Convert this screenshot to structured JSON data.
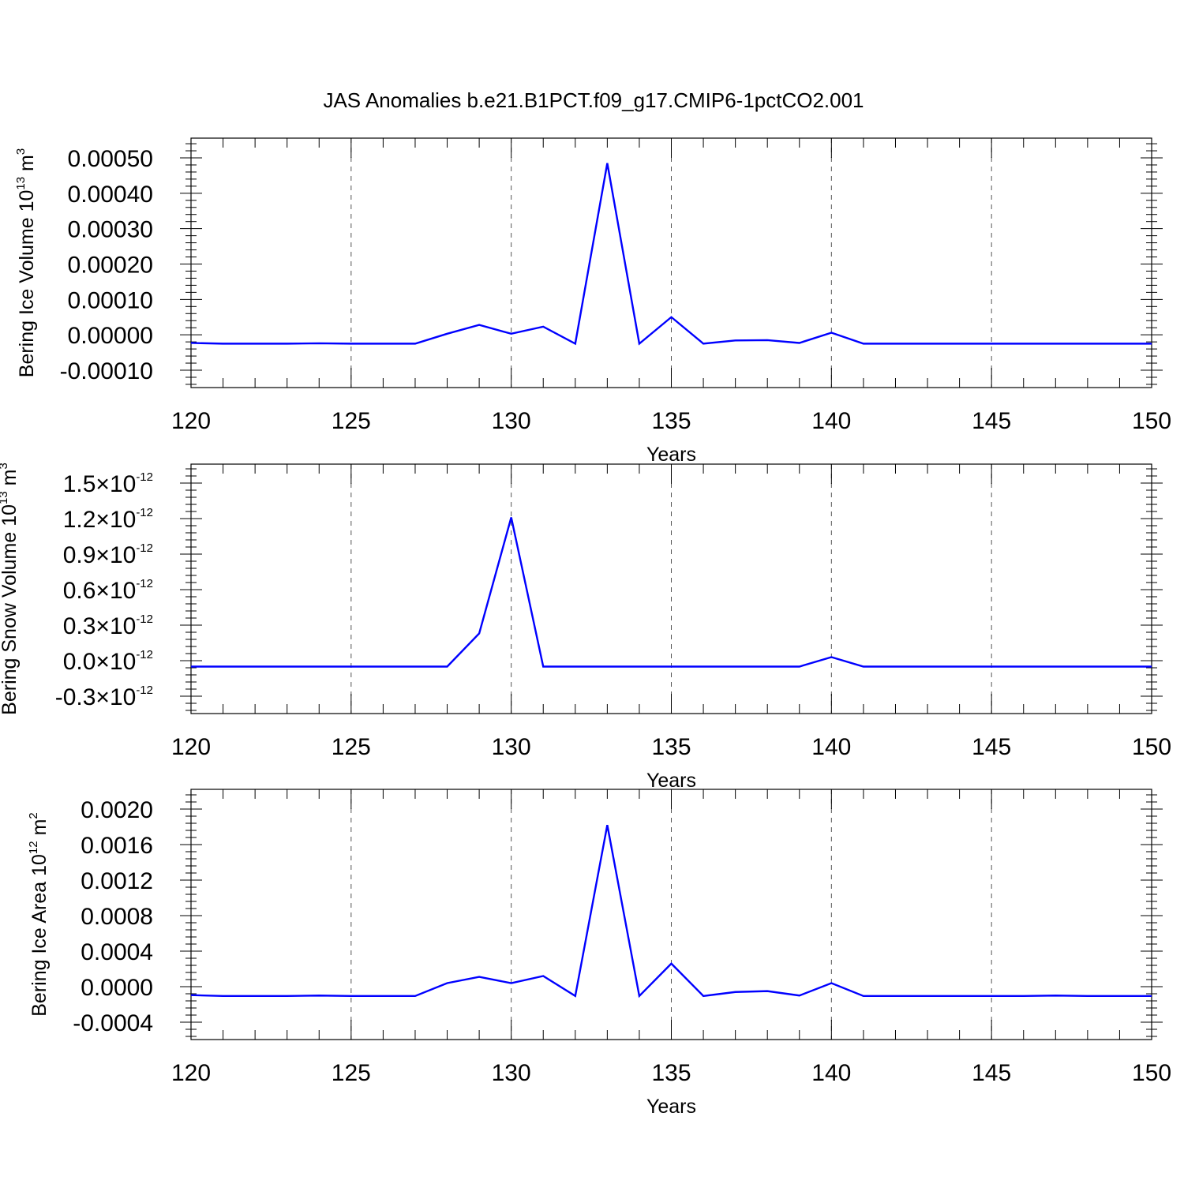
{
  "title": "JAS Anomalies b.e21.B1PCT.f09_g17.CMIP6-1pctCO2.001",
  "colors": {
    "series": "#0000ff",
    "grid": "#555555",
    "axis": "#000000"
  },
  "chart_data": [
    {
      "type": "line",
      "xlabel": "Years",
      "ylabel_parts": [
        "Bering Ice Volume 10",
        "13",
        " m",
        "3"
      ],
      "xlim": [
        120,
        150
      ],
      "ylim": [
        -0.0001,
        0.0005
      ],
      "xticks": [
        120,
        125,
        130,
        135,
        140,
        145,
        150
      ],
      "xtick_labels": [
        "120",
        "125",
        "130",
        "135",
        "140",
        "145",
        "150"
      ],
      "yticks": [
        -0.0001,
        0,
        0.0001,
        0.0002,
        0.0003,
        0.0004,
        0.0005
      ],
      "ytick_labels": [
        "-0.00010",
        "0.00000",
        "0.00010",
        "0.00020",
        "0.00030",
        "0.00040",
        "0.00050"
      ],
      "grid": "x-dashed",
      "x": [
        120,
        121,
        122,
        123,
        124,
        125,
        126,
        127,
        128,
        129,
        130,
        131,
        132,
        133,
        134,
        135,
        136,
        137,
        138,
        139,
        140,
        141,
        142,
        143,
        144,
        145,
        146,
        147,
        148,
        149,
        150
      ],
      "series": [
        {
          "values": [
            -2.3e-05,
            -2.5e-05,
            -2.5e-05,
            -2.5e-05,
            -2.4e-05,
            -2.5e-05,
            -2.5e-05,
            -2.5e-05,
            3e-06,
            2.8e-05,
            3e-06,
            2.3e-05,
            -2.5e-05,
            0.000485,
            -2.5e-05,
            5e-05,
            -2.5e-05,
            -1.6e-05,
            -1.5e-05,
            -2.3e-05,
            6e-06,
            -2.5e-05,
            -2.5e-05,
            -2.5e-05,
            -2.5e-05,
            -2.5e-05,
            -2.5e-05,
            -2.5e-05,
            -2.5e-05,
            -2.5e-05,
            -2.5e-05
          ]
        }
      ]
    },
    {
      "type": "line",
      "xlabel": "Years",
      "ylabel_parts": [
        "Bering Snow Volume 10",
        "13",
        " m",
        "3"
      ],
      "xlim": [
        120,
        150
      ],
      "ylim": [
        -3e-13,
        1.5e-12
      ],
      "xticks": [
        120,
        125,
        130,
        135,
        140,
        145,
        150
      ],
      "xtick_labels": [
        "120",
        "125",
        "130",
        "135",
        "140",
        "145",
        "150"
      ],
      "yticks": [
        -3e-13,
        0,
        3e-13,
        6e-13,
        9e-13,
        1.2e-12,
        1.5e-12
      ],
      "ytick_mantissas": [
        "-0.3",
        "0.0",
        "0.3",
        "0.6",
        "0.9",
        "1.2",
        "1.5"
      ],
      "ytick_times": "×",
      "ytick_base": "10",
      "ytick_exponent": "-12",
      "grid": "x-dashed",
      "x": [
        120,
        121,
        122,
        123,
        124,
        125,
        126,
        127,
        128,
        129,
        130,
        131,
        132,
        133,
        134,
        135,
        136,
        137,
        138,
        139,
        140,
        141,
        142,
        143,
        144,
        145,
        146,
        147,
        148,
        149,
        150
      ],
      "series": [
        {
          "values": [
            -5e-14,
            -5e-14,
            -5e-14,
            -5e-14,
            -5e-14,
            -5e-14,
            -5e-14,
            -5e-14,
            -5e-14,
            2.3e-13,
            1.21e-12,
            -5e-14,
            -5e-14,
            -5e-14,
            -5e-14,
            -5e-14,
            -5e-14,
            -5e-14,
            -5e-14,
            -5e-14,
            3e-14,
            -5e-14,
            -5e-14,
            -5e-14,
            -5e-14,
            -5e-14,
            -5e-14,
            -5e-14,
            -5e-14,
            -5e-14,
            -5e-14
          ]
        }
      ]
    },
    {
      "type": "line",
      "xlabel": "Years",
      "ylabel_parts": [
        "Bering Ice Area 10",
        "12",
        " m",
        "2"
      ],
      "xlim": [
        120,
        150
      ],
      "ylim": [
        -0.0004,
        0.002
      ],
      "xticks": [
        120,
        125,
        130,
        135,
        140,
        145,
        150
      ],
      "xtick_labels": [
        "120",
        "125",
        "130",
        "135",
        "140",
        "145",
        "150"
      ],
      "yticks": [
        -0.0004,
        0,
        0.0004,
        0.0008,
        0.0012,
        0.0016,
        0.002
      ],
      "ytick_labels": [
        "-0.0004",
        "0.0000",
        "0.0004",
        "0.0008",
        "0.0012",
        "0.0016",
        "0.0020"
      ],
      "grid": "x-dashed",
      "x": [
        120,
        121,
        122,
        123,
        124,
        125,
        126,
        127,
        128,
        129,
        130,
        131,
        132,
        133,
        134,
        135,
        136,
        137,
        138,
        139,
        140,
        141,
        142,
        143,
        144,
        145,
        146,
        147,
        148,
        149,
        150
      ],
      "series": [
        {
          "values": [
            -9.5e-05,
            -0.000105,
            -0.000105,
            -0.000105,
            -0.0001,
            -0.000105,
            -0.000105,
            -0.000105,
            4e-05,
            0.00011,
            4e-05,
            0.00012,
            -0.000105,
            0.00182,
            -0.000105,
            0.00026,
            -0.000105,
            -6e-05,
            -5e-05,
            -0.0001,
            4e-05,
            -0.000105,
            -0.000105,
            -0.000105,
            -0.000105,
            -0.000105,
            -0.000105,
            -0.0001,
            -0.000105,
            -0.000105,
            -0.000105
          ]
        }
      ]
    }
  ]
}
